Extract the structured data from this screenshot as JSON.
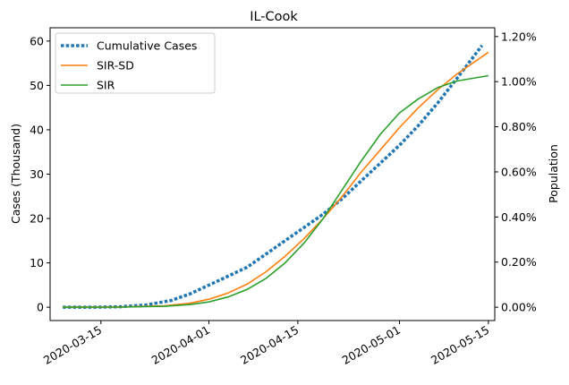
{
  "chart_data": {
    "type": "line",
    "title": "IL-Cook",
    "xlabel": "",
    "ylabel": "Cases (Thousand)",
    "y2label": "Population",
    "x_range": [
      "2020-03-07",
      "2020-05-16"
    ],
    "ylim": [
      -3,
      63
    ],
    "y_ticks": [
      0,
      10,
      20,
      30,
      40,
      50,
      60
    ],
    "y2_ticks": [
      "0.00%",
      "0.20%",
      "0.40%",
      "0.60%",
      "0.80%",
      "1.00%",
      "1.20%"
    ],
    "y2_per_tick_thousand": 10.17,
    "x_ticks": [
      "2020-03-15",
      "2020-04-01",
      "2020-04-15",
      "2020-05-01",
      "2020-05-15"
    ],
    "grid": false,
    "legend_position": "top-left",
    "series": [
      {
        "name": "Cumulative Cases",
        "style": "dotted",
        "color": "#1f77b4",
        "dates": [
          "2020-03-09",
          "2020-03-14",
          "2020-03-18",
          "2020-03-22",
          "2020-03-26",
          "2020-03-29",
          "2020-04-01",
          "2020-04-04",
          "2020-04-07",
          "2020-04-10",
          "2020-04-13",
          "2020-04-16",
          "2020-04-19",
          "2020-04-22",
          "2020-04-25",
          "2020-04-28",
          "2020-05-01",
          "2020-05-04",
          "2020-05-07",
          "2020-05-10",
          "2020-05-14"
        ],
        "values": [
          0,
          0,
          0.1,
          0.5,
          1.5,
          3.0,
          5.0,
          7.0,
          9.0,
          12.0,
          15.0,
          18.0,
          21.0,
          24.5,
          28.5,
          32.5,
          36.5,
          41.0,
          46.0,
          51.5,
          59.0
        ]
      },
      {
        "name": "SIR-SD",
        "style": "solid",
        "color": "#ff7f0e",
        "dates": [
          "2020-03-09",
          "2020-03-18",
          "2020-03-25",
          "2020-03-29",
          "2020-04-01",
          "2020-04-04",
          "2020-04-07",
          "2020-04-10",
          "2020-04-13",
          "2020-04-16",
          "2020-04-19",
          "2020-04-22",
          "2020-04-25",
          "2020-04-28",
          "2020-05-01",
          "2020-05-04",
          "2020-05-07",
          "2020-05-10",
          "2020-05-15"
        ],
        "values": [
          0,
          0.05,
          0.3,
          0.9,
          1.8,
          3.2,
          5.2,
          8.0,
          11.5,
          15.5,
          20.0,
          25.0,
          30.5,
          35.5,
          40.5,
          45.0,
          49.0,
          52.5,
          57.5
        ]
      },
      {
        "name": "SIR",
        "style": "solid",
        "color": "#2ca02c",
        "dates": [
          "2020-03-09",
          "2020-03-18",
          "2020-03-25",
          "2020-03-29",
          "2020-04-01",
          "2020-04-04",
          "2020-04-07",
          "2020-04-10",
          "2020-04-13",
          "2020-04-16",
          "2020-04-19",
          "2020-04-22",
          "2020-04-25",
          "2020-04-28",
          "2020-05-01",
          "2020-05-04",
          "2020-05-07",
          "2020-05-10",
          "2020-05-15"
        ],
        "values": [
          0,
          0.02,
          0.2,
          0.6,
          1.2,
          2.3,
          4.0,
          6.5,
          10.0,
          14.5,
          20.0,
          26.5,
          33.0,
          39.0,
          43.8,
          47.0,
          49.5,
          51.0,
          52.2
        ]
      }
    ]
  }
}
